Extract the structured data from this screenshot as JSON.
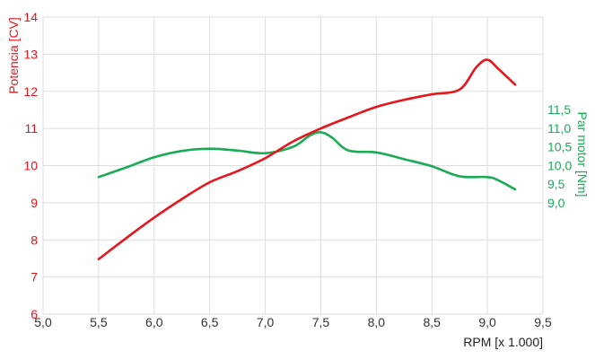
{
  "chart_data": {
    "type": "line",
    "xlabel": "RPM [x 1.000]",
    "xlim": [
      5.0,
      9.5
    ],
    "xticks": [
      "5,0",
      "5,5",
      "6,0",
      "6,5",
      "7,0",
      "7,5",
      "8,0",
      "8,5",
      "9,0",
      "9,5"
    ],
    "ylabel_left": "Potencia [CV]",
    "ylim_left": [
      6,
      14
    ],
    "yticks_left": [
      "6",
      "7",
      "8",
      "9",
      "10",
      "11",
      "12",
      "13",
      "14"
    ],
    "ylabel_right": "Par motor [Nm]",
    "yticks_right": [
      "9,0",
      "9,5",
      "10,0",
      "10,5",
      "11,0",
      "11,5"
    ],
    "ylim_right": [
      9.0,
      11.5
    ],
    "grid": true,
    "series": [
      {
        "name": "Potencia [CV]",
        "axis": "left",
        "color": "#e8141c",
        "x": [
          5.5,
          5.75,
          6.0,
          6.25,
          6.5,
          6.75,
          7.0,
          7.25,
          7.5,
          7.75,
          8.0,
          8.25,
          8.5,
          8.75,
          8.9,
          9.0,
          9.1,
          9.25
        ],
        "y": [
          7.48,
          8.05,
          8.6,
          9.1,
          9.55,
          9.85,
          10.2,
          10.65,
          11.0,
          11.3,
          11.58,
          11.77,
          11.92,
          12.05,
          12.65,
          12.85,
          12.6,
          12.18
        ]
      },
      {
        "name": "Par motor [Nm]",
        "axis": "right",
        "color": "#1aab55",
        "x": [
          5.5,
          5.75,
          6.0,
          6.25,
          6.5,
          6.75,
          7.0,
          7.25,
          7.4,
          7.5,
          7.6,
          7.75,
          8.0,
          8.25,
          8.5,
          8.75,
          9.0,
          9.1,
          9.25
        ],
        "y": [
          9.69,
          9.95,
          10.22,
          10.39,
          10.45,
          10.4,
          10.33,
          10.5,
          10.8,
          10.89,
          10.75,
          10.4,
          10.35,
          10.17,
          9.98,
          9.71,
          9.69,
          9.6,
          9.36
        ]
      }
    ]
  }
}
